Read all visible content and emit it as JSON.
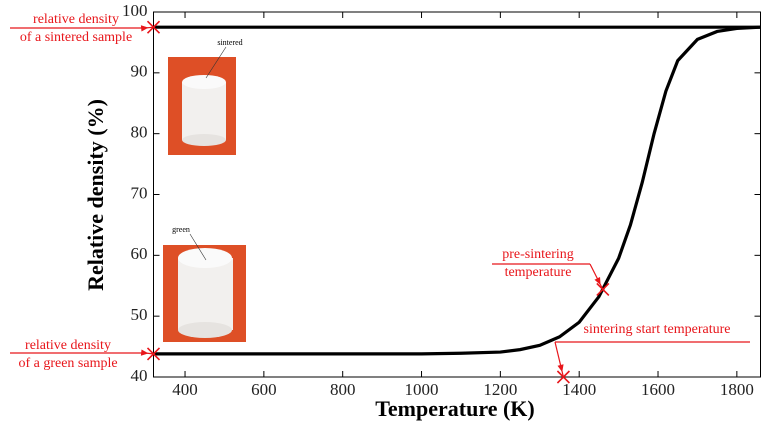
{
  "chart_data": {
    "type": "line",
    "xlabel": "Temperature  (K)",
    "ylabel": "Relative  density  (%)",
    "xlim": [
      320,
      1860
    ],
    "ylim": [
      40,
      100
    ],
    "xticks": [
      400,
      600,
      800,
      1000,
      1200,
      1400,
      1600,
      1800
    ],
    "yticks": [
      40,
      50,
      60,
      70,
      80,
      90,
      100
    ],
    "series": [
      {
        "color": "#000000",
        "x": [
          320,
          1860
        ],
        "values": [
          97.5,
          97.5
        ]
      },
      {
        "color": "#000000",
        "x": [
          320,
          600,
          800,
          1000,
          1100,
          1200,
          1250,
          1300,
          1350,
          1400,
          1450,
          1500,
          1530,
          1560,
          1590,
          1620,
          1650,
          1700,
          1750,
          1800,
          1860
        ],
        "values": [
          43.8,
          43.8,
          43.8,
          43.8,
          43.9,
          44.1,
          44.5,
          45.2,
          46.6,
          49.0,
          53.2,
          59.5,
          65,
          72,
          80,
          87,
          92,
          95.5,
          96.8,
          97.3,
          97.5
        ]
      }
    ],
    "annotations": [
      {
        "lines": [
          "relative density",
          "of a sintered sample"
        ],
        "x": 320,
        "y": 97.5
      },
      {
        "lines": [
          "relative density",
          "of a green sample"
        ],
        "x": 320,
        "y": 43.8
      },
      {
        "lines": [
          "pre-sintering",
          "temperature"
        ],
        "x": 1460,
        "y": 54.4
      },
      {
        "lines": [
          "sintering start temperature"
        ],
        "x": 1360,
        "y": 40
      }
    ],
    "photo_labels": [
      "sintered",
      "green"
    ]
  }
}
